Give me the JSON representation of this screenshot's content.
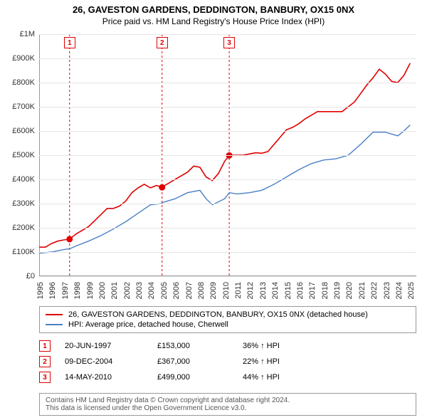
{
  "title": {
    "line1": "26, GAVESTON GARDENS, DEDDINGTON, BANBURY, OX15 0NX",
    "line2": "Price paid vs. HM Land Registry's House Price Index (HPI)"
  },
  "chart": {
    "type": "line",
    "x_range": [
      1995,
      2025.5
    ],
    "y_range": [
      0,
      1000000
    ],
    "y_ticks": [
      0,
      100000,
      200000,
      300000,
      400000,
      500000,
      600000,
      700000,
      800000,
      900000,
      1000000
    ],
    "y_tick_labels": [
      "£0",
      "£100K",
      "£200K",
      "£300K",
      "£400K",
      "£500K",
      "£600K",
      "£700K",
      "£800K",
      "£900K",
      "£1M"
    ],
    "x_ticks": [
      1995,
      1996,
      1997,
      1998,
      1999,
      2000,
      2001,
      2002,
      2003,
      2004,
      2005,
      2006,
      2007,
      2008,
      2009,
      2010,
      2011,
      2012,
      2013,
      2014,
      2015,
      2016,
      2017,
      2018,
      2019,
      2020,
      2021,
      2022,
      2023,
      2024,
      2025
    ],
    "grid_color": "#e5e5e5",
    "background_color": "#ffffff",
    "series": [
      {
        "name": "price-line",
        "label": "26, GAVESTON GARDENS, DEDDINGTON, BANBURY, OX15 0NX (detached house)",
        "color": "#e00000",
        "width": 1.6,
        "points": [
          [
            1995,
            120000
          ],
          [
            1995.5,
            120000
          ],
          [
            1996,
            135000
          ],
          [
            1996.5,
            145000
          ],
          [
            1997,
            150000
          ],
          [
            1997.46,
            153000
          ],
          [
            1998,
            175000
          ],
          [
            1998.5,
            190000
          ],
          [
            1999,
            205000
          ],
          [
            1999.5,
            230000
          ],
          [
            2000,
            255000
          ],
          [
            2000.5,
            280000
          ],
          [
            2001,
            280000
          ],
          [
            2001.5,
            290000
          ],
          [
            2002,
            310000
          ],
          [
            2002.5,
            345000
          ],
          [
            2003,
            365000
          ],
          [
            2003.5,
            380000
          ],
          [
            2004,
            365000
          ],
          [
            2004.5,
            375000
          ],
          [
            2004.94,
            367000
          ],
          [
            2005,
            370000
          ],
          [
            2005.5,
            385000
          ],
          [
            2006,
            400000
          ],
          [
            2006.5,
            415000
          ],
          [
            2007,
            430000
          ],
          [
            2007.5,
            455000
          ],
          [
            2008,
            450000
          ],
          [
            2008.5,
            410000
          ],
          [
            2009,
            395000
          ],
          [
            2009.5,
            425000
          ],
          [
            2010,
            475000
          ],
          [
            2010.37,
            499000
          ],
          [
            2010.5,
            500000
          ],
          [
            2011,
            500000
          ],
          [
            2011.5,
            500000
          ],
          [
            2012,
            505000
          ],
          [
            2012.5,
            510000
          ],
          [
            2013,
            508000
          ],
          [
            2013.5,
            515000
          ],
          [
            2014,
            545000
          ],
          [
            2014.5,
            575000
          ],
          [
            2015,
            605000
          ],
          [
            2015.5,
            615000
          ],
          [
            2016,
            630000
          ],
          [
            2016.5,
            650000
          ],
          [
            2017,
            665000
          ],
          [
            2017.5,
            680000
          ],
          [
            2018,
            680000
          ],
          [
            2018.5,
            680000
          ],
          [
            2019,
            680000
          ],
          [
            2019.5,
            680000
          ],
          [
            2020,
            700000
          ],
          [
            2020.5,
            720000
          ],
          [
            2021,
            755000
          ],
          [
            2021.5,
            790000
          ],
          [
            2022,
            820000
          ],
          [
            2022.5,
            855000
          ],
          [
            2023,
            835000
          ],
          [
            2023.5,
            805000
          ],
          [
            2024,
            800000
          ],
          [
            2024.5,
            830000
          ],
          [
            2025,
            880000
          ]
        ]
      },
      {
        "name": "hpi-line",
        "label": "HPI: Average price, detached house, Cherwell",
        "color": "#4a7fc6",
        "width": 1.4,
        "points": [
          [
            1995,
            95000
          ],
          [
            1996,
            100000
          ],
          [
            1997,
            110000
          ],
          [
            1997.46,
            113000
          ],
          [
            1998,
            125000
          ],
          [
            1999,
            145000
          ],
          [
            2000,
            168000
          ],
          [
            2001,
            195000
          ],
          [
            2002,
            225000
          ],
          [
            2003,
            260000
          ],
          [
            2004,
            295000
          ],
          [
            2004.94,
            300000
          ],
          [
            2005,
            305000
          ],
          [
            2006,
            320000
          ],
          [
            2007,
            345000
          ],
          [
            2008,
            355000
          ],
          [
            2008.5,
            320000
          ],
          [
            2009,
            295000
          ],
          [
            2010,
            320000
          ],
          [
            2010.37,
            345000
          ],
          [
            2011,
            340000
          ],
          [
            2012,
            345000
          ],
          [
            2013,
            355000
          ],
          [
            2014,
            380000
          ],
          [
            2015,
            410000
          ],
          [
            2016,
            440000
          ],
          [
            2017,
            465000
          ],
          [
            2018,
            480000
          ],
          [
            2019,
            485000
          ],
          [
            2020,
            500000
          ],
          [
            2021,
            545000
          ],
          [
            2022,
            595000
          ],
          [
            2023,
            595000
          ],
          [
            2024,
            580000
          ],
          [
            2024.5,
            600000
          ],
          [
            2025,
            625000
          ]
        ]
      }
    ],
    "sale_markers": [
      {
        "n": "1",
        "x": 1997.46,
        "y": 153000,
        "color": "#e00000"
      },
      {
        "n": "2",
        "x": 2004.94,
        "y": 367000,
        "color": "#e00000"
      },
      {
        "n": "3",
        "x": 2010.37,
        "y": 499000,
        "color": "#e00000"
      }
    ]
  },
  "legend": {
    "s0": "26, GAVESTON GARDENS, DEDDINGTON, BANBURY, OX15 0NX (detached house)",
    "s1": "HPI: Average price, detached house, Cherwell"
  },
  "sales": [
    {
      "n": "1",
      "date": "20-JUN-1997",
      "price": "£153,000",
      "pct": "36% ↑ HPI",
      "color": "#e00000"
    },
    {
      "n": "2",
      "date": "09-DEC-2004",
      "price": "£367,000",
      "pct": "22% ↑ HPI",
      "color": "#e00000"
    },
    {
      "n": "3",
      "date": "14-MAY-2010",
      "price": "£499,000",
      "pct": "44% ↑ HPI",
      "color": "#e00000"
    }
  ],
  "attribution": {
    "line1": "Contains HM Land Registry data © Crown copyright and database right 2024.",
    "line2": "This data is licensed under the Open Government Licence v3.0."
  }
}
